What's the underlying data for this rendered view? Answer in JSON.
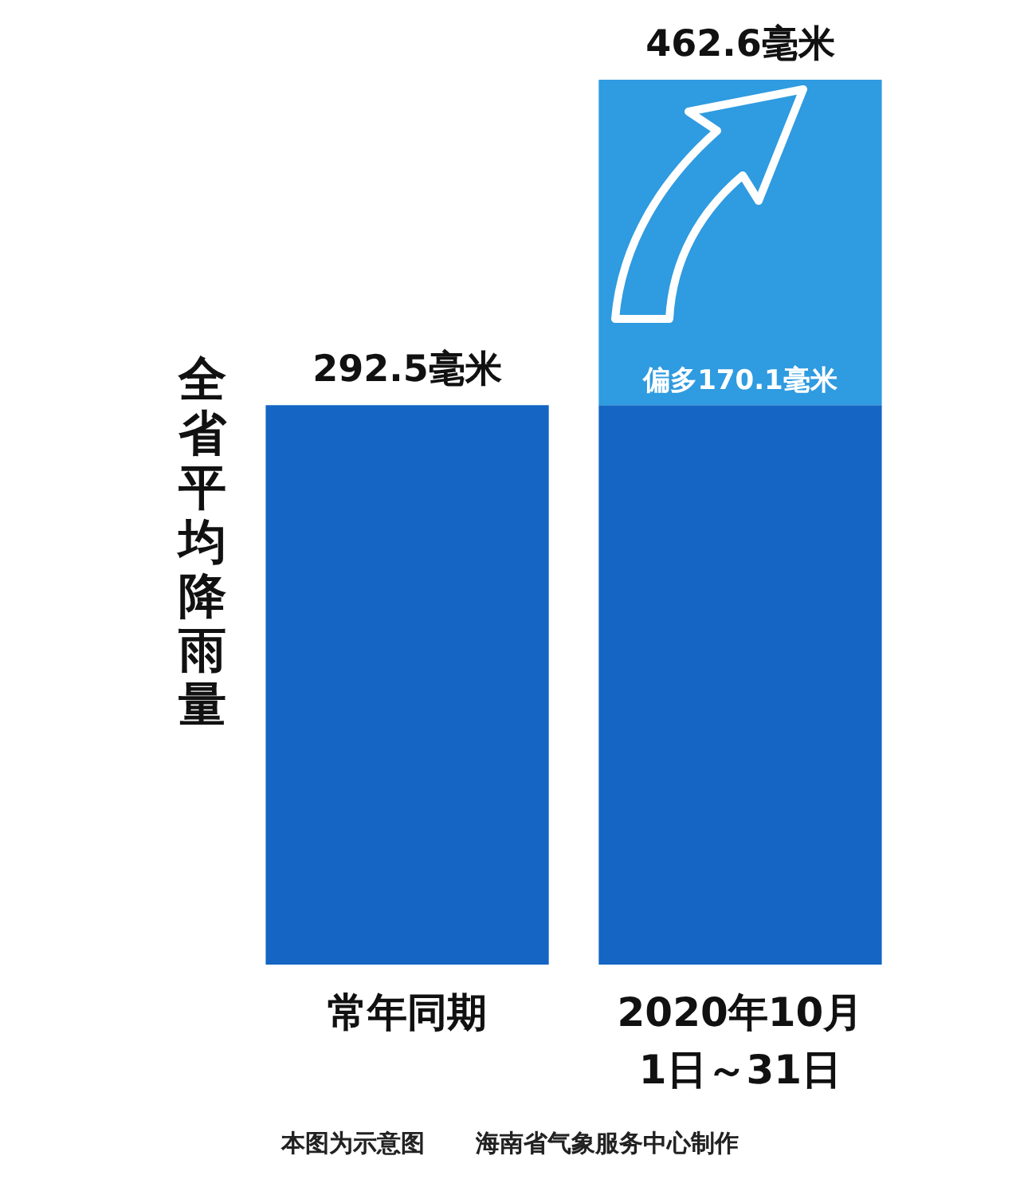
{
  "chart_data": {
    "type": "bar",
    "stacked": true,
    "ylabel": "全省平均降雨量",
    "categories": [
      "常年同期",
      "2020年10月 1日～31日"
    ],
    "series": [
      {
        "color": "#1565c4",
        "values": [
          292.5,
          292.5
        ],
        "value_labels": [
          null,
          null
        ]
      },
      {
        "color": "#2f9be0",
        "values": [
          null,
          170.1
        ],
        "value_labels": [
          null,
          "偏多170.1毫米"
        ]
      }
    ],
    "totals": [
      "292.5毫米",
      "462.6毫米"
    ],
    "annotations": [
      "本图为示意图",
      "海南省气象服务中心制作"
    ]
  }
}
